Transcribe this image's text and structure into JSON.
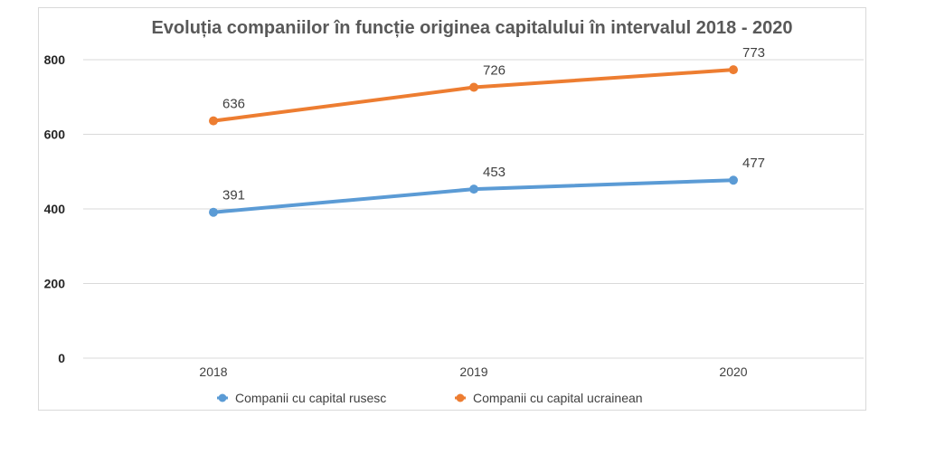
{
  "chart_data": {
    "type": "line",
    "title": "Evoluția companiilor în funcție originea capitalului în intervalul 2018 - 2020",
    "xlabel": "",
    "ylabel": "",
    "categories": [
      "2018",
      "2019",
      "2020"
    ],
    "ylim": [
      0,
      800
    ],
    "yticks": [
      0,
      200,
      400,
      600,
      800
    ],
    "grid": true,
    "legend_position": "bottom",
    "series": [
      {
        "name": "Companii cu capital rusesc",
        "values": [
          391,
          453,
          477
        ],
        "color": "#5b9bd5"
      },
      {
        "name": "Companii cu capital ucrainean",
        "values": [
          636,
          726,
          773
        ],
        "color": "#ed7d31"
      }
    ]
  }
}
